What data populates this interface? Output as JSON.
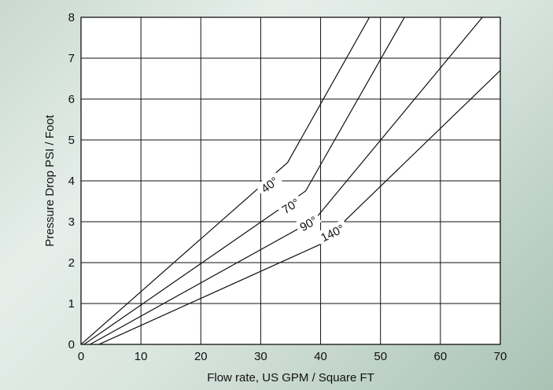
{
  "chart_data": {
    "type": "line",
    "title": "",
    "xlabel": "Flow rate, US GPM / Square FT",
    "ylabel": "Pressure Drop PSI / Foot",
    "xlim": [
      0,
      70
    ],
    "ylim": [
      0,
      8
    ],
    "x_ticks": [
      "0",
      "10",
      "20",
      "30",
      "40",
      "50",
      "60",
      "70"
    ],
    "y_ticks": [
      "0",
      "1",
      "2",
      "3",
      "4",
      "5",
      "6",
      "7",
      "8"
    ],
    "grid": true,
    "legend": "inline labels on curves",
    "line_color": "#111111",
    "series": [
      {
        "label": "40°",
        "label_at": {
          "x": 31.5,
          "y": 3.9,
          "angle": 37
        },
        "points": [
          [
            0,
            0
          ],
          [
            34.5,
            4.45
          ],
          [
            52,
            9.0
          ]
        ]
      },
      {
        "label": "70°",
        "label_at": {
          "x": 35,
          "y": 3.38,
          "angle": 33
        },
        "points": [
          [
            0.5,
            0
          ],
          [
            37.5,
            3.75
          ],
          [
            54,
            8.0
          ]
        ]
      },
      {
        "label": "90°",
        "label_at": {
          "x": 38,
          "y": 2.95,
          "angle": 30
        },
        "points": [
          [
            1.5,
            0
          ],
          [
            39,
            3.05
          ],
          [
            67,
            8.0
          ]
        ]
      },
      {
        "label": "140°",
        "label_at": {
          "x": 42,
          "y": 2.72,
          "angle": 26
        },
        "points": [
          [
            3,
            0
          ],
          [
            40,
            2.45
          ],
          [
            70,
            6.7
          ]
        ]
      }
    ]
  }
}
